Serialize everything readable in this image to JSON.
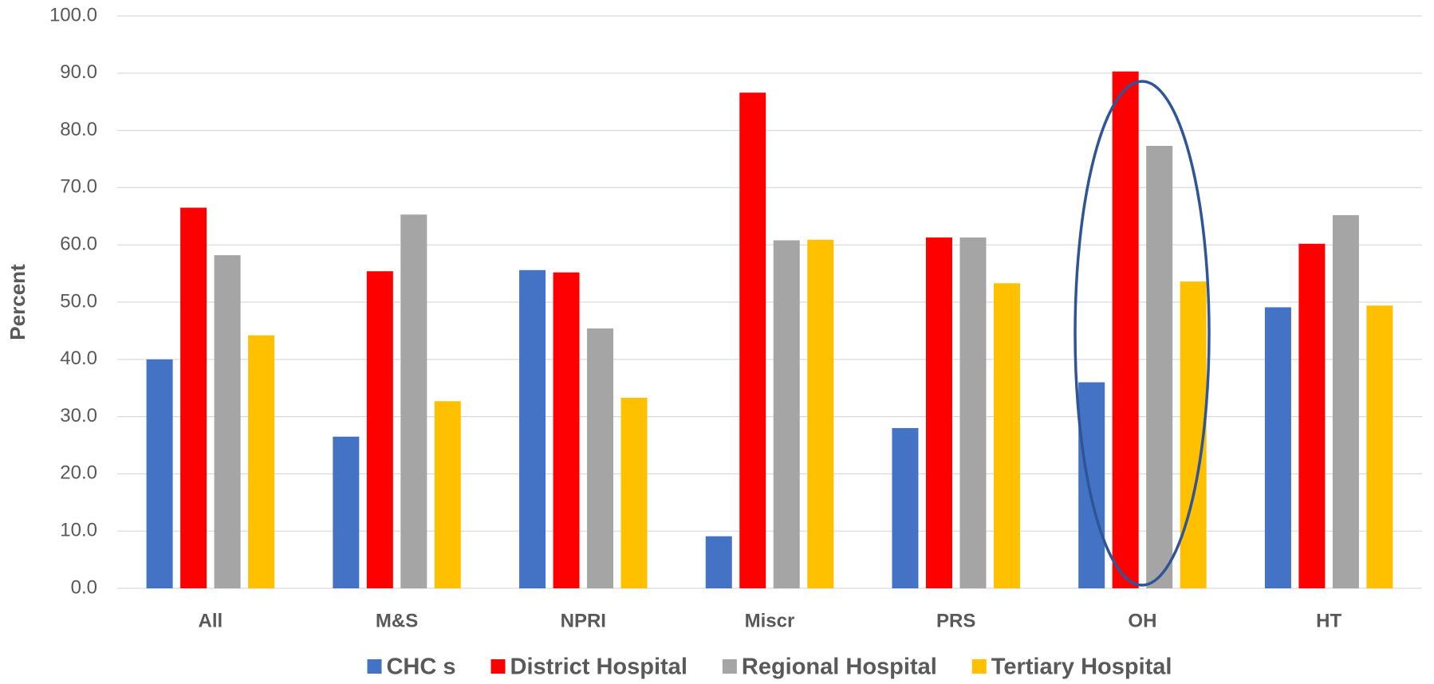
{
  "chart_data": {
    "type": "bar",
    "y_label": "Percent",
    "categories": [
      "All",
      "M&S",
      "NPRI",
      "Miscr",
      "PRS",
      "OH",
      "HT"
    ],
    "series": [
      {
        "name": "CHC s",
        "color": "#4472c4",
        "values": [
          40.0,
          26.5,
          55.6,
          9.1,
          28.0,
          36.0,
          49.1
        ]
      },
      {
        "name": "District Hospital",
        "color": "#ff0000",
        "values": [
          66.5,
          55.4,
          55.2,
          86.6,
          61.3,
          90.3,
          60.2
        ]
      },
      {
        "name": "Regional Hospital",
        "color": "#a5a5a5",
        "values": [
          58.2,
          65.3,
          45.4,
          60.8,
          61.3,
          77.3,
          65.2
        ]
      },
      {
        "name": "Tertiary Hospital",
        "color": "#ffc000",
        "values": [
          44.2,
          32.7,
          33.3,
          60.9,
          53.3,
          53.6,
          49.4
        ]
      }
    ],
    "ylim": [
      0,
      100
    ],
    "yticks": [
      {
        "value": 0,
        "label": "0.0"
      },
      {
        "value": 10,
        "label": "10.0"
      },
      {
        "value": 20,
        "label": "20.0"
      },
      {
        "value": 30,
        "label": "30.0"
      },
      {
        "value": 40,
        "label": "40.0"
      },
      {
        "value": 50,
        "label": "50.0"
      },
      {
        "value": 60,
        "label": "60.0"
      },
      {
        "value": 70,
        "label": "70.0"
      },
      {
        "value": 80,
        "label": "80.0"
      },
      {
        "value": 90,
        "label": "90.0"
      },
      {
        "value": 100,
        "label": "100.0"
      }
    ],
    "grid": true,
    "legend": "bottom"
  }
}
